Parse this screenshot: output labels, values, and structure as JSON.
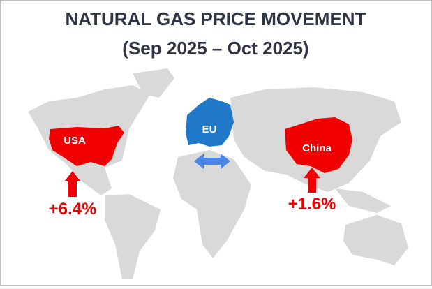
{
  "header": {
    "title": "NATURAL GAS PRICE MOVEMENT",
    "subtitle": "(Sep 2025 – Oct 2025)"
  },
  "regions": [
    {
      "label": "USA",
      "change": "+6.4%"
    },
    {
      "label": "EU"
    },
    {
      "label": "China",
      "change": "+1.6%"
    }
  ]
}
